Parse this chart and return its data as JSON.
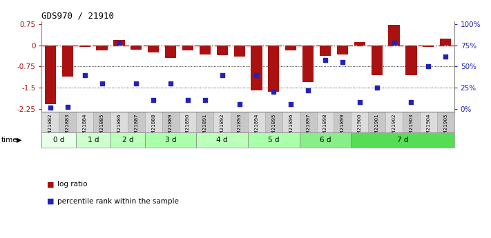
{
  "title": "GDS970 / 21910",
  "samples": [
    "GSM21882",
    "GSM21883",
    "GSM21884",
    "GSM21885",
    "GSM21886",
    "GSM21887",
    "GSM21888",
    "GSM21889",
    "GSM21890",
    "GSM21891",
    "GSM21892",
    "GSM21893",
    "GSM21894",
    "GSM21895",
    "GSM21896",
    "GSM21897",
    "GSM21898",
    "GSM21899",
    "GSM21900",
    "GSM21901",
    "GSM21902",
    "GSM21903",
    "GSM21904",
    "GSM21905"
  ],
  "log_ratio": [
    -2.1,
    -1.1,
    -0.05,
    -0.18,
    0.18,
    -0.15,
    -0.25,
    -0.45,
    -0.18,
    -0.32,
    -0.35,
    -0.4,
    -1.6,
    -1.65,
    -0.18,
    -1.3,
    -0.38,
    -0.32,
    0.12,
    -1.05,
    0.72,
    -1.05,
    -0.05,
    0.25
  ],
  "percentile_rank": [
    1,
    2,
    40,
    30,
    78,
    30,
    10,
    30,
    10,
    10,
    40,
    5,
    40,
    20,
    5,
    22,
    58,
    55,
    8,
    25,
    78,
    8,
    50,
    62
  ],
  "time_groups": [
    {
      "label": "0 d",
      "start": 0,
      "end": 2
    },
    {
      "label": "1 d",
      "start": 2,
      "end": 4
    },
    {
      "label": "2 d",
      "start": 4,
      "end": 6
    },
    {
      "label": "3 d",
      "start": 6,
      "end": 9
    },
    {
      "label": "4 d",
      "start": 9,
      "end": 12
    },
    {
      "label": "5 d",
      "start": 12,
      "end": 15
    },
    {
      "label": "6 d",
      "start": 15,
      "end": 18
    },
    {
      "label": "7 d",
      "start": 18,
      "end": 24
    }
  ],
  "time_colors": [
    "#e8ffe8",
    "#ccffcc",
    "#bbffbb",
    "#aaffaa",
    "#bbffbb",
    "#aaffaa",
    "#88ee88",
    "#55dd55"
  ],
  "ylim": [
    -2.35,
    0.85
  ],
  "yticks": [
    0.75,
    0,
    -0.75,
    -1.5,
    -2.25
  ],
  "right_yticks": [
    100,
    75,
    50,
    25,
    0
  ],
  "hlines": [
    -0.75,
    -1.5
  ],
  "bar_color": "#aa1111",
  "dot_color": "#2222bb",
  "zero_line_color": "#cc2222",
  "background_color": "#ffffff"
}
